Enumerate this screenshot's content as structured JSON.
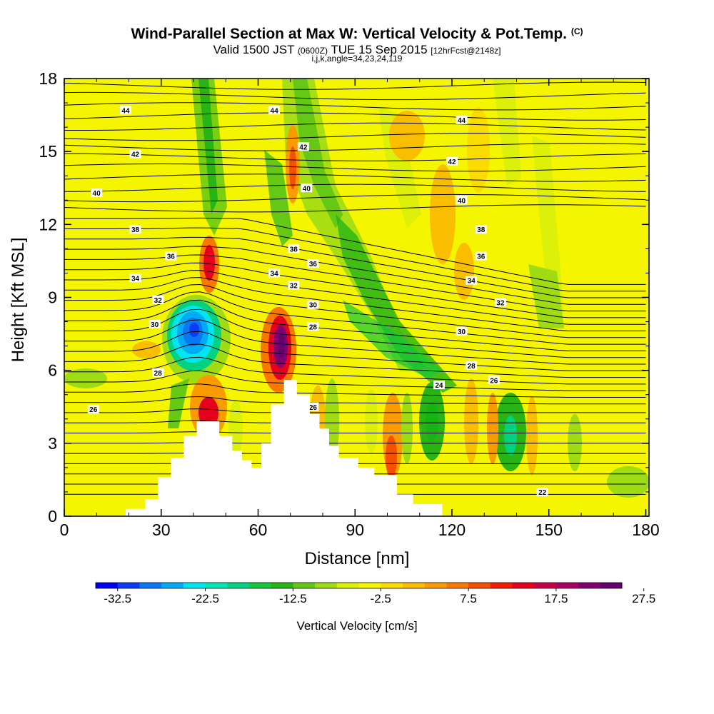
{
  "title": {
    "main": "Wind-Parallel Section at Max W: Vertical Velocity & Pot.Temp.",
    "copyright": "(C)",
    "valid_prefix": "Valid 1500 JST",
    "valid_zulu": "(0600Z)",
    "valid_date": "TUE 15 Sep 2015",
    "forecast": "[12hrFcst@2148z]",
    "indices": "i,j,k,angle=34,23,24,119"
  },
  "chart_data": {
    "type": "heatmap",
    "xlabel": "Distance [nm]",
    "ylabel": "Height [Kft MSL]",
    "xlim": [
      0,
      181
    ],
    "ylim": [
      0,
      18
    ],
    "x_ticks": [
      "0",
      "30",
      "60",
      "90",
      "120",
      "150",
      "180"
    ],
    "y_ticks": [
      "0",
      "3",
      "6",
      "9",
      "12",
      "15",
      "18"
    ],
    "background_value_color": "#f5f500",
    "colorbar": {
      "title": "Vertical Velocity [cm/s]",
      "labels": [
        "-32.5",
        "-22.5",
        "-12.5",
        "-2.5",
        "7.5",
        "17.5",
        "27.5"
      ],
      "colors": [
        "#0000f0",
        "#0a3cf5",
        "#0a78f5",
        "#00aaf5",
        "#00e6f0",
        "#00e6b4",
        "#00d282",
        "#14c83c",
        "#28b414",
        "#64c814",
        "#a0dc14",
        "#dcf00a",
        "#f5f500",
        "#fadc00",
        "#fabe00",
        "#fa9b00",
        "#fa7800",
        "#f55000",
        "#f01e00",
        "#e6001e",
        "#c8004b",
        "#aa0064",
        "#82006e",
        "#64006e"
      ]
    },
    "terrain_profile": [
      [
        0,
        0
      ],
      [
        19,
        0
      ],
      [
        19,
        0.3
      ],
      [
        25,
        0.3
      ],
      [
        25,
        0.7
      ],
      [
        29,
        0.7
      ],
      [
        29,
        1.6
      ],
      [
        33,
        1.6
      ],
      [
        33,
        2.4
      ],
      [
        37,
        2.4
      ],
      [
        37,
        3.3
      ],
      [
        41,
        3.3
      ],
      [
        41,
        3.9
      ],
      [
        48,
        3.9
      ],
      [
        48,
        3.3
      ],
      [
        52,
        3.3
      ],
      [
        52,
        2.7
      ],
      [
        55,
        2.7
      ],
      [
        55,
        2.3
      ],
      [
        58,
        2.3
      ],
      [
        58,
        2.0
      ],
      [
        61,
        2.0
      ],
      [
        61,
        3.0
      ],
      [
        64,
        3.0
      ],
      [
        64,
        4.6
      ],
      [
        68,
        4.6
      ],
      [
        68,
        5.6
      ],
      [
        72,
        5.6
      ],
      [
        72,
        5.0
      ],
      [
        76,
        5.0
      ],
      [
        76,
        4.2
      ],
      [
        79,
        4.2
      ],
      [
        79,
        3.6
      ],
      [
        82,
        3.6
      ],
      [
        82,
        2.9
      ],
      [
        85,
        2.9
      ],
      [
        85,
        2.4
      ],
      [
        91,
        2.4
      ],
      [
        91,
        2.0
      ],
      [
        96,
        2.0
      ],
      [
        96,
        1.7
      ],
      [
        103,
        1.7
      ],
      [
        103,
        0.9
      ],
      [
        108,
        0.9
      ],
      [
        108,
        0.5
      ],
      [
        117,
        0.5
      ],
      [
        117,
        0
      ]
    ],
    "vertical_velocity_features": [
      {
        "x": 41,
        "y": 7.5,
        "w": -30
      },
      {
        "x": 44,
        "y": 10.2,
        "w": 20
      },
      {
        "x": 44,
        "y": 4.2,
        "w": 18
      },
      {
        "x": 68,
        "y": 7.2,
        "w": 28
      },
      {
        "x": 71,
        "y": 14.5,
        "w": 15
      },
      {
        "x": 114,
        "y": 3.8,
        "w": -12
      },
      {
        "x": 139,
        "y": 3.0,
        "w": -12
      },
      {
        "x": 101,
        "y": 2.2,
        "w": 14
      }
    ],
    "potential_temperature_labels": [
      {
        "text": "44",
        "x": 19,
        "y": 16.7
      },
      {
        "text": "44",
        "x": 65,
        "y": 16.7
      },
      {
        "text": "44",
        "x": 123,
        "y": 16.3
      },
      {
        "text": "42",
        "x": 22,
        "y": 14.9
      },
      {
        "text": "42",
        "x": 74,
        "y": 15.2
      },
      {
        "text": "42",
        "x": 120,
        "y": 14.6
      },
      {
        "text": "40",
        "x": 10,
        "y": 13.3
      },
      {
        "text": "40",
        "x": 75,
        "y": 13.5
      },
      {
        "text": "40",
        "x": 123,
        "y": 13.0
      },
      {
        "text": "38",
        "x": 22,
        "y": 11.8
      },
      {
        "text": "38",
        "x": 71,
        "y": 11.0
      },
      {
        "text": "38",
        "x": 129,
        "y": 11.8
      },
      {
        "text": "36",
        "x": 33,
        "y": 10.7
      },
      {
        "text": "36",
        "x": 77,
        "y": 10.4
      },
      {
        "text": "36",
        "x": 129,
        "y": 10.7
      },
      {
        "text": "34",
        "x": 22,
        "y": 9.8
      },
      {
        "text": "34",
        "x": 65,
        "y": 10.0
      },
      {
        "text": "34",
        "x": 126,
        "y": 9.7
      },
      {
        "text": "32",
        "x": 29,
        "y": 8.9
      },
      {
        "text": "32",
        "x": 71,
        "y": 9.5
      },
      {
        "text": "32",
        "x": 135,
        "y": 8.8
      },
      {
        "text": "30",
        "x": 28,
        "y": 7.9
      },
      {
        "text": "30",
        "x": 77,
        "y": 8.7
      },
      {
        "text": "30",
        "x": 123,
        "y": 7.6
      },
      {
        "text": "28",
        "x": 29,
        "y": 5.9
      },
      {
        "text": "28",
        "x": 77,
        "y": 7.8
      },
      {
        "text": "28",
        "x": 126,
        "y": 6.2
      },
      {
        "text": "26",
        "x": 9,
        "y": 4.4
      },
      {
        "text": "26",
        "x": 133,
        "y": 5.6
      },
      {
        "text": "26",
        "x": 77,
        "y": 4.5
      },
      {
        "text": "24",
        "x": 116,
        "y": 5.4
      },
      {
        "text": "22",
        "x": 148,
        "y": 1.0
      }
    ],
    "grid": false,
    "legend": "bottom"
  }
}
